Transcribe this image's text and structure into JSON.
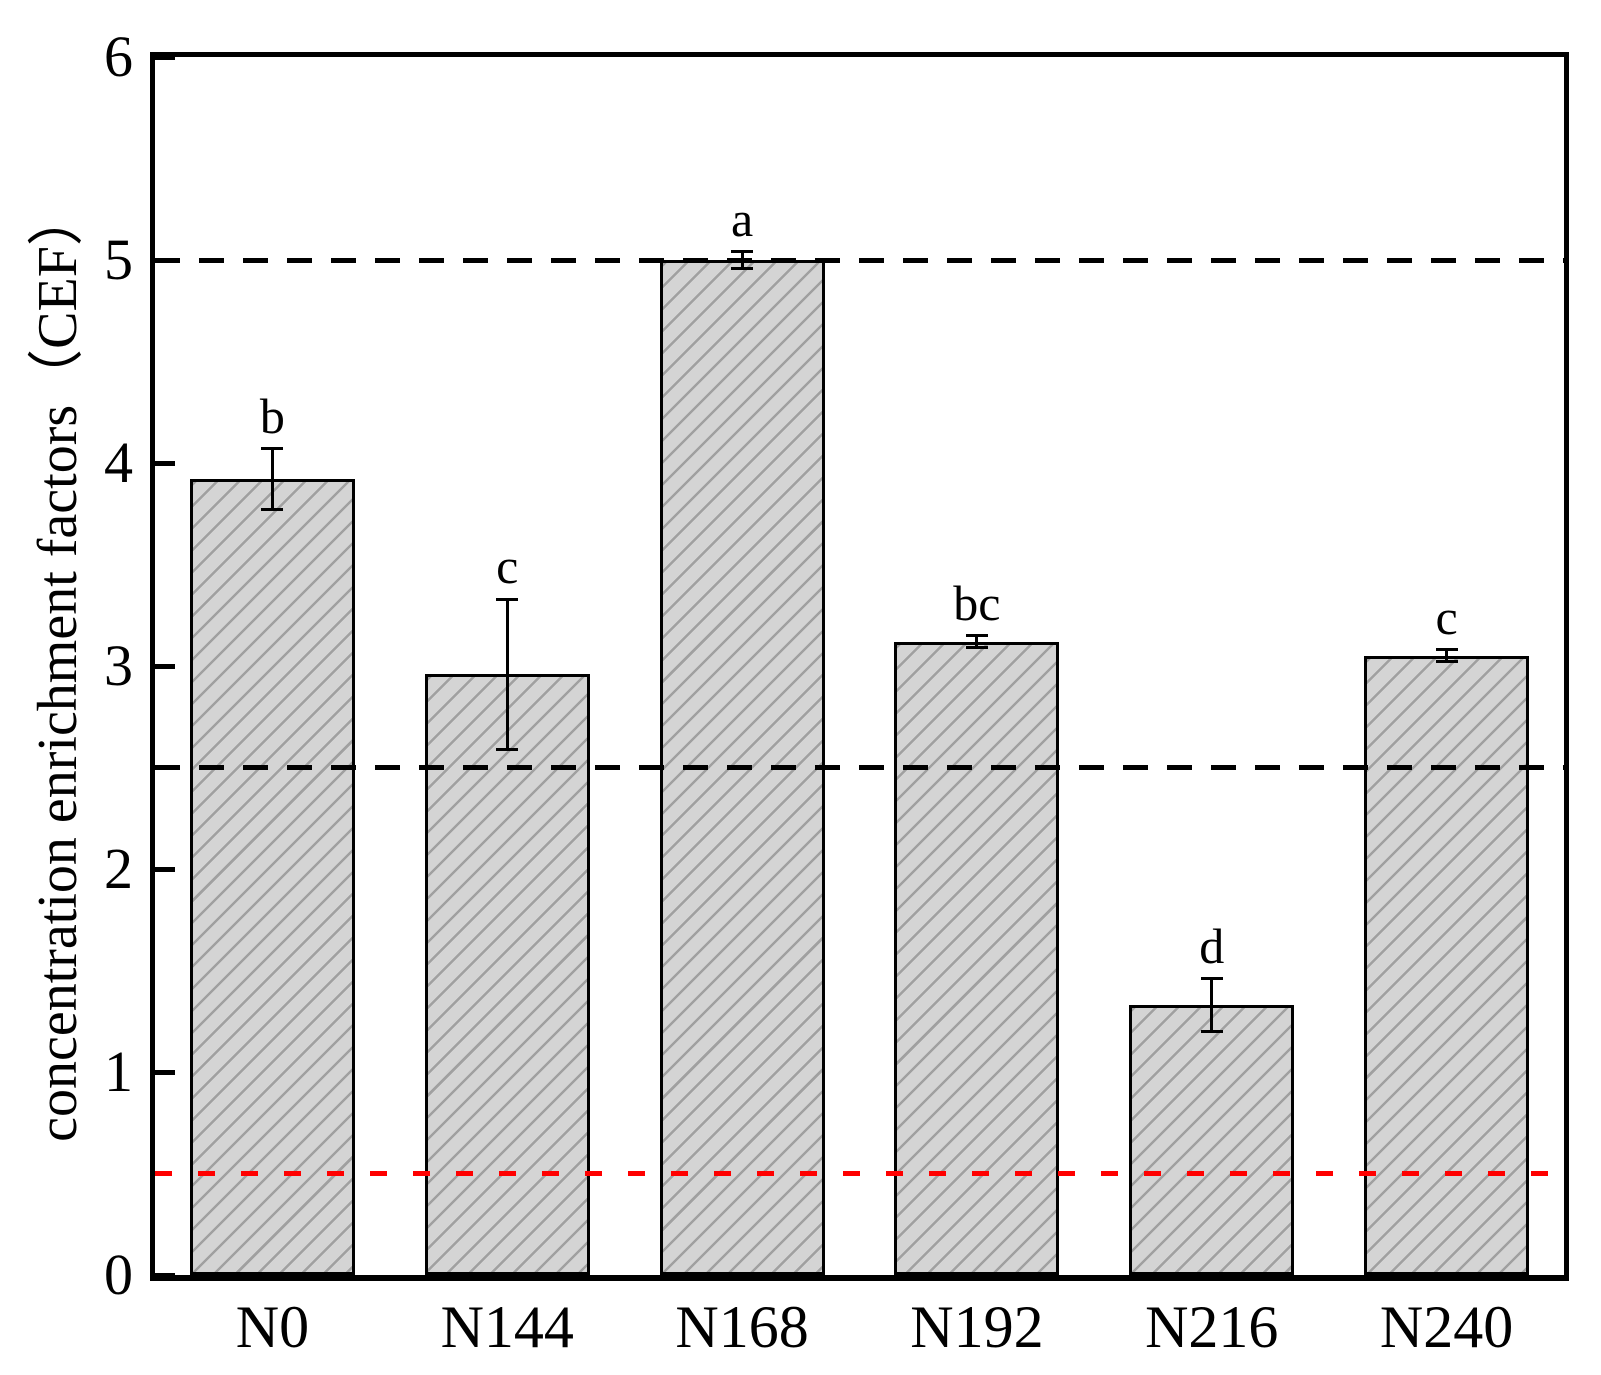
{
  "figure": {
    "background": "#ffffff"
  },
  "chart_data": {
    "type": "bar",
    "title": "",
    "xlabel": "",
    "ylabel": "concentration enrichment factors（CEF）",
    "categories": [
      "N0",
      "N144",
      "N168",
      "N192",
      "N216",
      "N240"
    ],
    "values": [
      3.92,
      2.96,
      5.0,
      3.12,
      1.33,
      3.05
    ],
    "errors": [
      0.15,
      0.37,
      0.04,
      0.03,
      0.13,
      0.03
    ],
    "significance_letters": [
      "b",
      "c",
      "a",
      "bc",
      "d",
      "c"
    ],
    "ylim": [
      0,
      6
    ],
    "yticks": [
      0,
      1,
      2,
      3,
      4,
      5,
      6
    ],
    "ytick_labels": [
      "0",
      "1",
      "2",
      "3",
      "4",
      "5",
      "6"
    ],
    "grid": false,
    "legend": false,
    "bar_style": {
      "fill": "#d4d4d4",
      "hatch": "diagonal-forward",
      "hatch_color": "#a0a0a0",
      "edge_color": "#000000"
    },
    "reference_lines": [
      {
        "y": 5.0,
        "color": "#000000",
        "style": "dashed",
        "dash": [
          25,
          19
        ]
      },
      {
        "y": 2.5,
        "color": "#000000",
        "style": "dashed",
        "dash": [
          25,
          19
        ]
      },
      {
        "y": 0.5,
        "color": "#ff0000",
        "style": "dashed",
        "dash": [
          17,
          26
        ]
      }
    ]
  }
}
